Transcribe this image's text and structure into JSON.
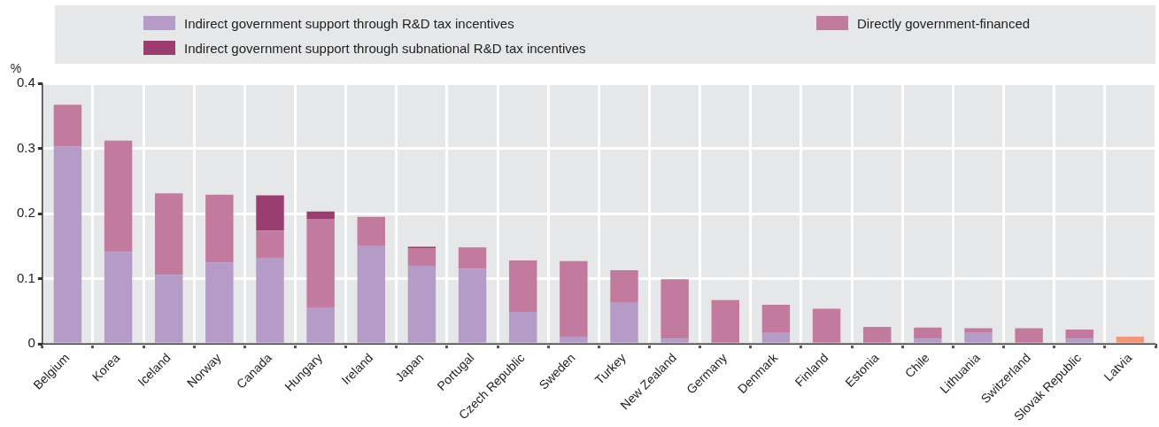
{
  "chart_data": {
    "type": "bar",
    "stacked": true,
    "ylabel": "%",
    "legend": "top",
    "grid": true,
    "categories": [
      "Belgium",
      "Korea",
      "Iceland",
      "Norway",
      "Canada",
      "Hungary",
      "Ireland",
      "Japan",
      "Portugal",
      "Czech Republic",
      "Sweden",
      "Turkey",
      "New Zealand",
      "Germany",
      "Denmark",
      "Finland",
      "Estonia",
      "Chile",
      "Lithuania",
      "Switzerland",
      "Slovak Republic",
      "Latvia"
    ],
    "ylim": [
      0,
      0.4
    ],
    "yticks": [
      0,
      0.1,
      0.2,
      0.3,
      0.4
    ],
    "series": [
      {
        "name": "Indirect government support through R&D tax incentives",
        "color": "#b59bc8",
        "values": [
          0.303,
          0.141,
          0.106,
          0.125,
          0.131,
          0.056,
          0.151,
          0.12,
          0.115,
          0.049,
          0.011,
          0.064,
          0.008,
          0,
          0.018,
          0,
          0,
          0.008,
          0.018,
          0,
          0.008,
          0
        ]
      },
      {
        "name": "Directly government-financed",
        "color": "#c27a9e",
        "colors": [
          "#c27a9e",
          "#c27a9e",
          "#c27a9e",
          "#c27a9e",
          "#c27a9e",
          "#c27a9e",
          "#c27a9e",
          "#c27a9e",
          "#c27a9e",
          "#c27a9e",
          "#c27a9e",
          "#c27a9e",
          "#c27a9e",
          "#c27a9e",
          "#c27a9e",
          "#c27a9e",
          "#c27a9e",
          "#c27a9e",
          "#c27a9e",
          "#c27a9e",
          "#c27a9e",
          "#f4967a"
        ],
        "values": [
          0.064,
          0.171,
          0.125,
          0.104,
          0.043,
          0.136,
          0.044,
          0.027,
          0.033,
          0.079,
          0.116,
          0.049,
          0.091,
          0.067,
          0.042,
          0.054,
          0.026,
          0.017,
          0.006,
          0.024,
          0.014,
          0.011
        ]
      },
      {
        "name": "Indirect government support through subnational R&D tax incentives",
        "color": "#9b3d6e",
        "values": [
          0,
          0,
          0,
          0,
          0.054,
          0.011,
          0,
          0.002,
          0,
          0,
          0,
          0,
          0,
          0,
          0,
          0,
          0,
          0,
          0,
          0,
          0,
          0
        ]
      }
    ]
  }
}
